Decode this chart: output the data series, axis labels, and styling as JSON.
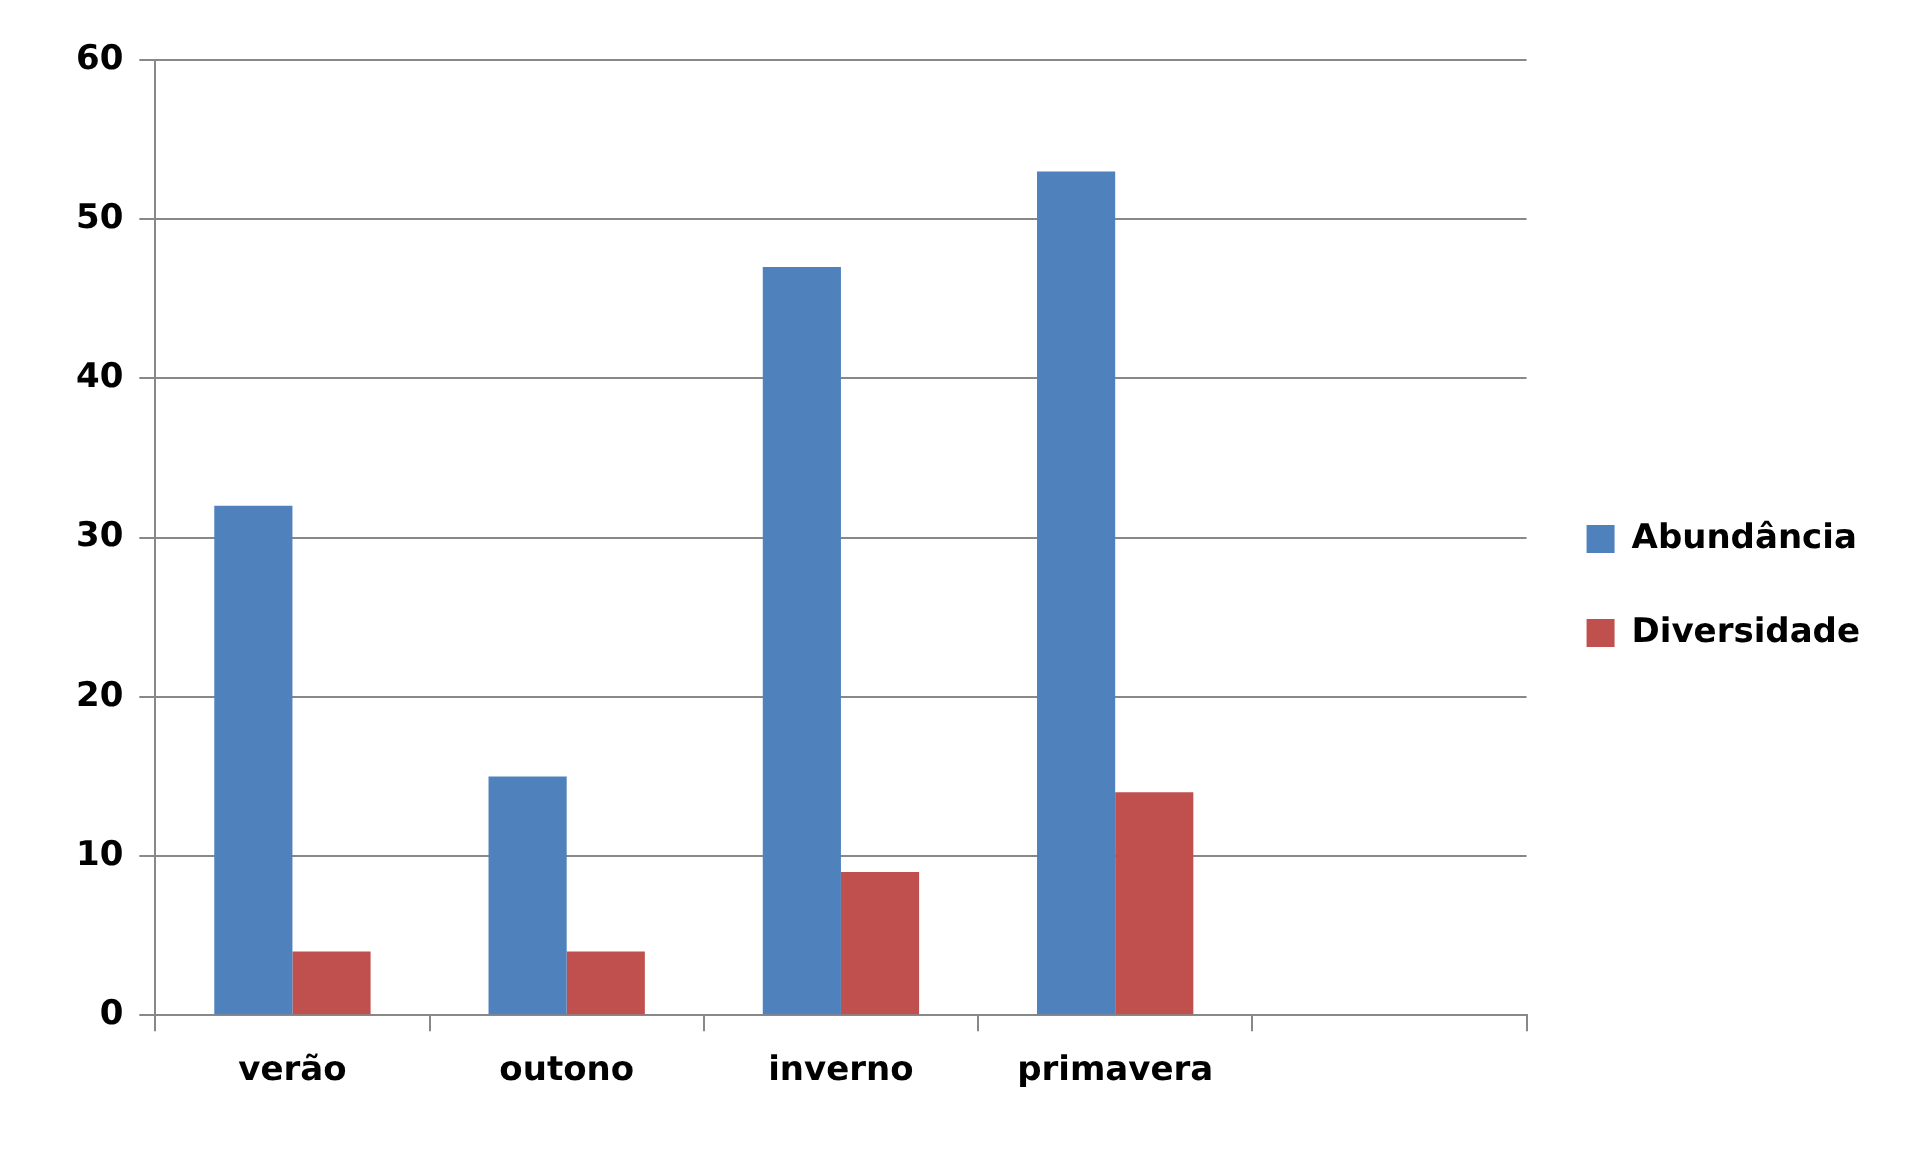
{
  "chart_data": {
    "type": "bar",
    "categories": [
      "verão",
      "outono",
      "inverno",
      "primavera",
      null
    ],
    "series": [
      {
        "name": "Abundância",
        "color": "#4f81bd",
        "values": [
          32,
          15,
          47,
          53,
          null
        ]
      },
      {
        "name": "Diversidade",
        "color": "#c0504d",
        "values": [
          4,
          4,
          9,
          14,
          null
        ]
      }
    ],
    "ylim": [
      0,
      60
    ],
    "yticks": [
      0,
      10,
      20,
      30,
      40,
      50,
      60
    ],
    "grid": "y",
    "legend": "right"
  }
}
